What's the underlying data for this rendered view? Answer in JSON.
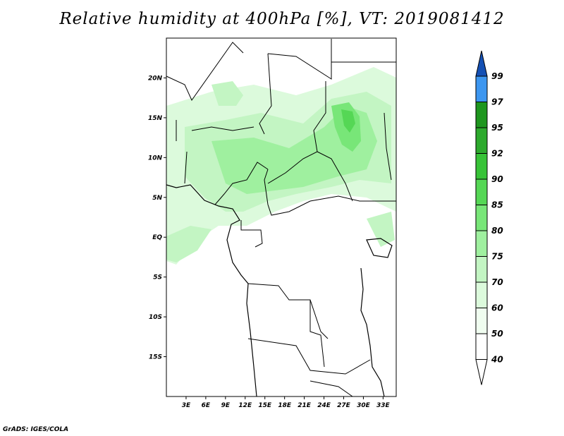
{
  "title": "Relative humidity at 400hPa [%], VT: 2019081412",
  "credit": "GrADS: IGES/COLA",
  "map": {
    "lon_range": [
      0,
      35
    ],
    "lat_range": [
      -20,
      25
    ],
    "lat_ticks": [
      {
        "value": 20,
        "label": "20N"
      },
      {
        "value": 15,
        "label": "15N"
      },
      {
        "value": 10,
        "label": "10N"
      },
      {
        "value": 5,
        "label": "5N"
      },
      {
        "value": 0,
        "label": "EQ"
      },
      {
        "value": -5,
        "label": "5S"
      },
      {
        "value": -10,
        "label": "10S"
      },
      {
        "value": -15,
        "label": "15S"
      }
    ],
    "lon_ticks": [
      {
        "value": 3,
        "label": "3E"
      },
      {
        "value": 6,
        "label": "6E"
      },
      {
        "value": 9,
        "label": "9E"
      },
      {
        "value": 12,
        "label": "12E"
      },
      {
        "value": 15,
        "label": "15E"
      },
      {
        "value": 18,
        "label": "18E"
      },
      {
        "value": 21,
        "label": "21E"
      },
      {
        "value": 24,
        "label": "24E"
      },
      {
        "value": 27,
        "label": "27E"
      },
      {
        "value": 30,
        "label": "30E"
      },
      {
        "value": 33,
        "label": "33E"
      }
    ]
  },
  "colorbar": {
    "levels": [
      {
        "label": "99",
        "color": "#1e6ed2"
      },
      {
        "label": "97",
        "color": "#3c96f0"
      },
      {
        "label": "95",
        "color": "#1e961e"
      },
      {
        "label": "92",
        "color": "#2daa2d"
      },
      {
        "label": "90",
        "color": "#37c337"
      },
      {
        "label": "85",
        "color": "#55d755"
      },
      {
        "label": "80",
        "color": "#78e678"
      },
      {
        "label": "75",
        "color": "#9ff09f"
      },
      {
        "label": "70",
        "color": "#c3f5c3"
      },
      {
        "label": "60",
        "color": "#dcfadc"
      },
      {
        "label": "50",
        "color": "#f0fdf0"
      },
      {
        "label": "40",
        "color": "#ffffff"
      }
    ],
    "top_arrow_color": "#1450b4",
    "bottom_arrow_color": "#ffffff"
  }
}
